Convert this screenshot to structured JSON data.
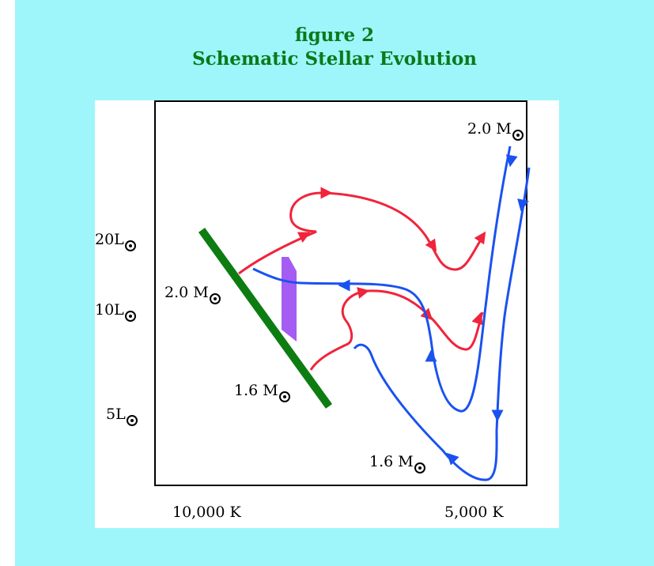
{
  "title": {
    "line1": "figure 2",
    "line2": "Schematic Stellar Evolution"
  },
  "y_labels": [
    {
      "id": "lum-20",
      "text": "20L"
    },
    {
      "id": "lum-10",
      "text": "10L"
    },
    {
      "id": "lum-5",
      "text": "5L"
    }
  ],
  "x_labels": [
    {
      "id": "temp-10000",
      "text": "10,000 K"
    },
    {
      "id": "temp-5000",
      "text": "5,000 K"
    }
  ],
  "track_labels": {
    "mass_2_top": "2.0 M",
    "mass_2_left": "2.0 M",
    "mass_1_6_left": "1.6 M",
    "mass_1_6_bottom": "1.6 M"
  },
  "colors": {
    "background": "#9ef6fb",
    "title": "#0a7a1a",
    "main_sequence": "#0d7d12",
    "instability_strip": "#a55cf2",
    "red_track": "#f0243c",
    "blue_track": "#1a52f0"
  },
  "symbols": {
    "solar_symbol": "sun-icon"
  }
}
